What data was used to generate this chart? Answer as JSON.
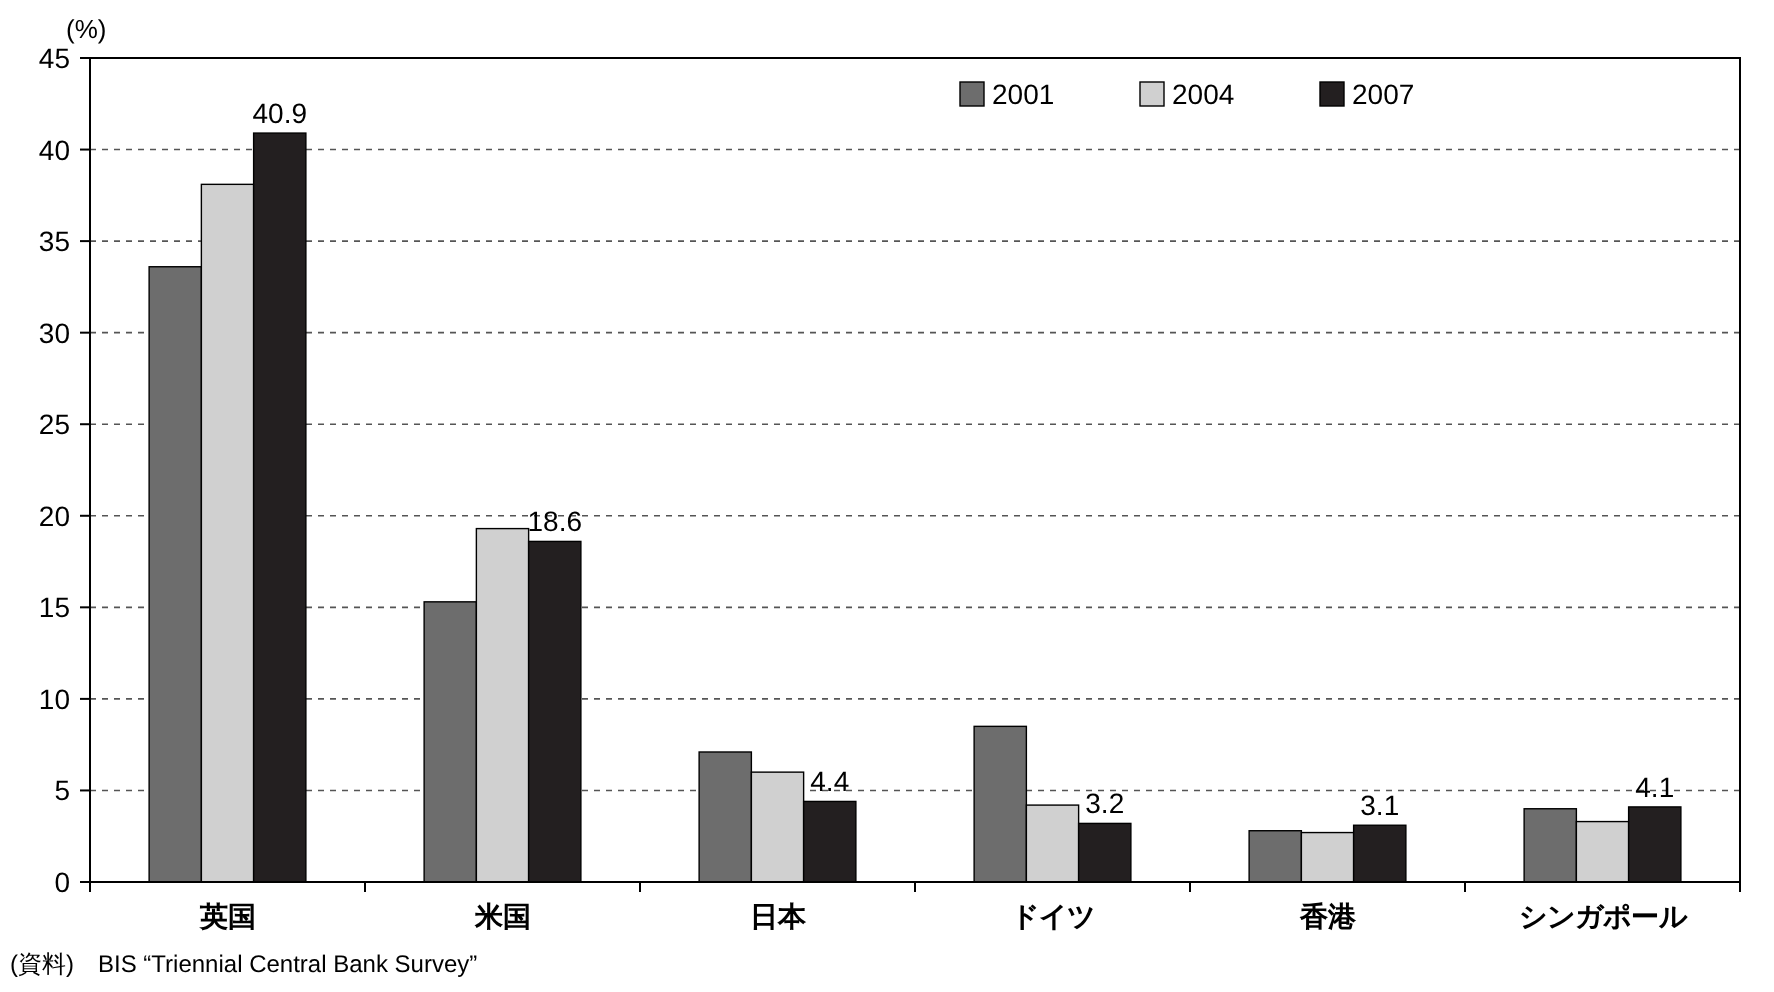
{
  "chart_data": {
    "type": "bar",
    "ylabel": "(%)",
    "categories": [
      "英国",
      "米国",
      "日本",
      "ドイツ",
      "香港",
      "シンガポール"
    ],
    "series": [
      {
        "name": "2001",
        "color": "#6d6d6d",
        "values": [
          33.6,
          15.3,
          7.1,
          8.5,
          2.8,
          4.0
        ]
      },
      {
        "name": "2004",
        "color": "#d0d0d0",
        "values": [
          38.1,
          19.3,
          6.0,
          4.2,
          2.7,
          3.3
        ]
      },
      {
        "name": "2007",
        "color": "#231f20",
        "values": [
          40.9,
          18.6,
          4.4,
          3.2,
          3.1,
          4.1
        ],
        "value_labels": [
          "40.9",
          "18.6",
          "4.4",
          "3.2",
          "3.1",
          "4.1"
        ]
      }
    ],
    "ylim": [
      0,
      45
    ],
    "yticks": [
      0,
      5,
      10,
      15,
      20,
      25,
      30,
      35,
      40,
      45
    ],
    "grid": "y",
    "legend": "top right",
    "annotations": [
      "(資料)　BIS “Triennial Central Bank Survey”"
    ]
  }
}
